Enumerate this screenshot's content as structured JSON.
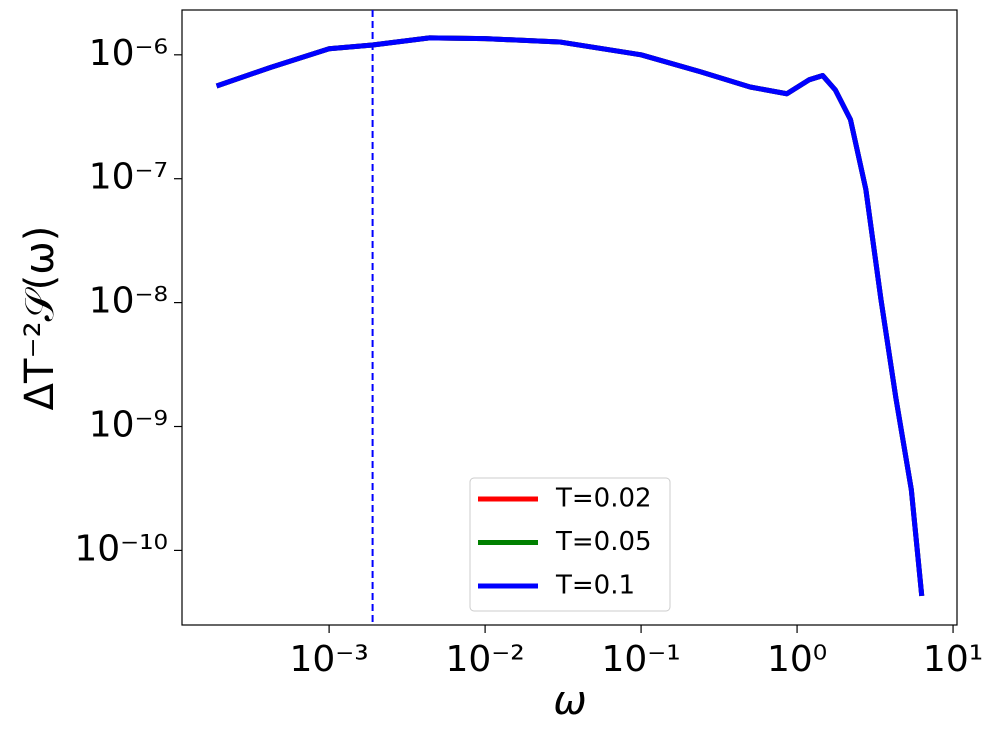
{
  "chart_data": {
    "type": "line",
    "x_label": "ω",
    "y_label": "ΔT⁻²𝒮(ω)",
    "log_x": true,
    "log_y": true,
    "grid": false,
    "legend_position": "lower center",
    "xlim": [
      0.000114,
      10.6
    ],
    "ylim": [
      2.5e-11,
      2.3e-06
    ],
    "xticks": [
      {
        "value": 0.001,
        "label": "10⁻³"
      },
      {
        "value": 0.01,
        "label": "10⁻²"
      },
      {
        "value": 0.1,
        "label": "10⁻¹"
      },
      {
        "value": 1,
        "label": "10⁰"
      },
      {
        "value": 10,
        "label": "10¹"
      }
    ],
    "yticks": [
      {
        "value": 1e-10,
        "label": "10⁻¹⁰"
      },
      {
        "value": 1e-09,
        "label": "10⁻⁹"
      },
      {
        "value": 1e-08,
        "label": "10⁻⁸"
      },
      {
        "value": 1e-07,
        "label": "10⁻⁷"
      },
      {
        "value": 1e-06,
        "label": "10⁻⁶"
      }
    ],
    "vline": {
      "x": 0.0019,
      "color": "#0000ff"
    },
    "x": [
      0.00019,
      0.00042,
      0.001,
      0.0019,
      0.0044,
      0.01,
      0.03,
      0.1,
      0.24,
      0.5,
      0.86,
      1.2,
      1.46,
      1.76,
      2.2,
      2.76,
      3.45,
      4.3,
      5.4,
      6.3
    ],
    "series": [
      {
        "name": "T=0.02",
        "color": "#ff0000",
        "values": [
          5.6e-07,
          7.9e-07,
          1.12e-06,
          1.2e-06,
          1.37e-06,
          1.35e-06,
          1.27e-06,
          1e-06,
          7.3e-07,
          5.5e-07,
          4.85e-07,
          6.3e-07,
          6.8e-07,
          5.2e-07,
          3e-07,
          8.2e-08,
          1.06e-08,
          1.7e-09,
          3.1e-10,
          4.3e-11
        ]
      },
      {
        "name": "T=0.05",
        "color": "#008000",
        "values": [
          5.6e-07,
          7.9e-07,
          1.12e-06,
          1.2e-06,
          1.37e-06,
          1.35e-06,
          1.27e-06,
          1e-06,
          7.3e-07,
          5.5e-07,
          4.85e-07,
          6.3e-07,
          6.8e-07,
          5.2e-07,
          3e-07,
          8.2e-08,
          1.06e-08,
          1.7e-09,
          3.1e-10,
          4.3e-11
        ]
      },
      {
        "name": "T=0.1",
        "color": "#0000ff",
        "values": [
          5.6e-07,
          7.9e-07,
          1.12e-06,
          1.2e-06,
          1.37e-06,
          1.35e-06,
          1.27e-06,
          1e-06,
          7.3e-07,
          5.5e-07,
          4.85e-07,
          6.3e-07,
          6.8e-07,
          5.2e-07,
          3e-07,
          8.2e-08,
          1.06e-08,
          1.7e-09,
          3.1e-10,
          4.3e-11
        ]
      }
    ]
  }
}
